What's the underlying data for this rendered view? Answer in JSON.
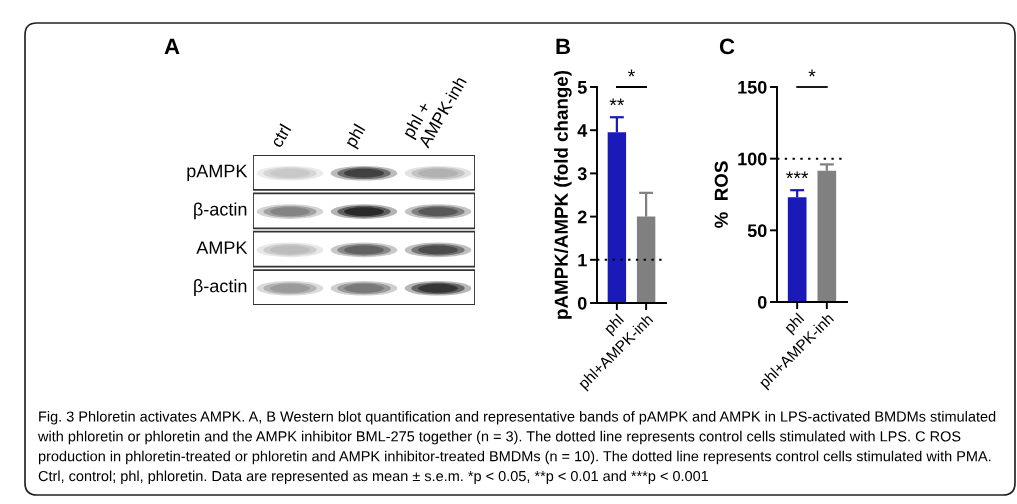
{
  "chart_data": [
    {
      "type": "other",
      "title": "A",
      "categories": [
        "ctrl",
        "phl",
        "phl +\nAMPK-inh"
      ],
      "y_categories": [
        "pAMPK",
        "β-actin",
        "AMPK",
        "β-actin"
      ],
      "annotations": [
        "Fig. 3 Phloretin activates AMPK. A, B Western blot quantification and representative bands of pAMPK and AMPK in LPS-activated BMDMs stimulated with phloretin or phloretin and the AMPK inhibitor BML-275 together (n = 3). The dotted line represents control cells stimulated with LPS. C ROS production in phloretin-treated or phloretin and AMPK inhibitor-treated BMDMs (n = 10). The dotted line represents control cells stimulated with PMA. Ctrl, control; phl, phloretin. Data are represented as mean ± s.e.m. *p < 0.05, **p < 0.01 and ***p < 0.001"
      ]
    },
    {
      "type": "bar",
      "title": "B",
      "ylabel": "pAMPK/AMPK (fold change)",
      "categories": [
        "phl",
        "phl+AMPK-inh"
      ],
      "values": [
        3.95,
        2.0
      ],
      "colors": [
        "#1a1ab8",
        "#808080"
      ],
      "errors": [
        [
          3.95,
          4.3
        ],
        [
          2.0,
          2.55
        ]
      ],
      "ylim": [
        0,
        5
      ],
      "yticks": [
        0,
        1,
        2,
        3,
        4,
        5
      ],
      "ref_lines": [
        {
          "axis": "y",
          "value": 1,
          "color": "#000000",
          "line_style": "dotted"
        }
      ],
      "annotations": [
        "*",
        {
          "text": "**",
          "x": "phl",
          "y": 4.3
        }
      ]
    },
    {
      "type": "bar",
      "title": "C",
      "ylabel": "%  ROS",
      "categories": [
        "phl",
        "phl+AMPK-inh"
      ],
      "values": [
        73,
        91.5
      ],
      "colors": [
        "#1a1ab8",
        "#808080"
      ],
      "errors": [
        [
          73,
          78
        ],
        [
          91.5,
          96
        ]
      ],
      "ylim": [
        0,
        150
      ],
      "yticks": [
        0,
        50,
        100,
        150
      ],
      "ref_lines": [
        {
          "axis": "y",
          "value": 100,
          "color": "#000000",
          "line_style": "dotted"
        }
      ],
      "annotations": [
        "*",
        {
          "text": "***",
          "x": "phl",
          "y": 78
        }
      ]
    }
  ]
}
